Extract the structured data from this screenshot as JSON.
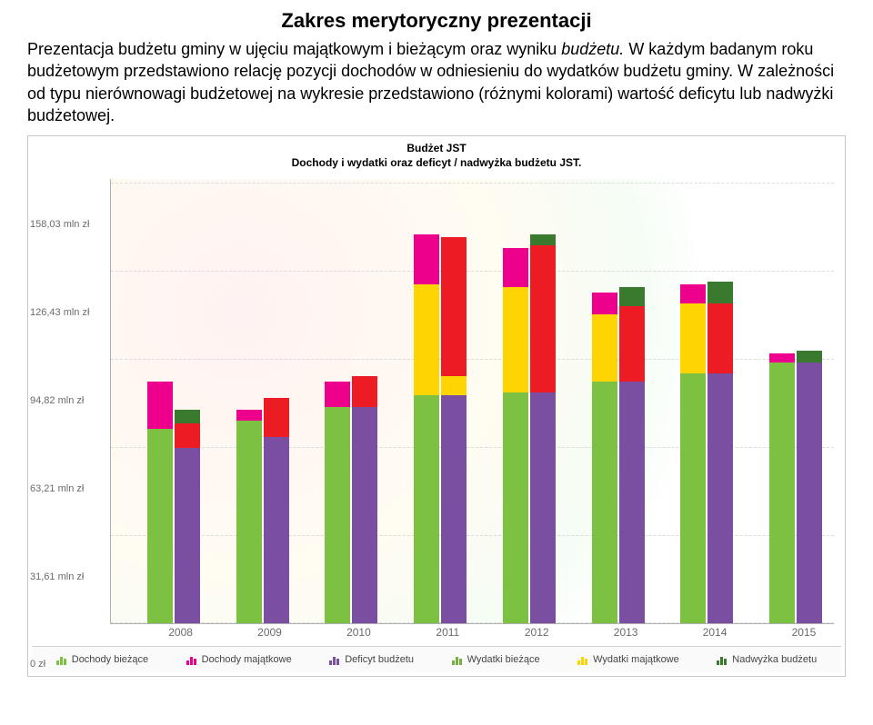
{
  "page": {
    "title": "Zakres merytoryczny prezentacji",
    "intro_before_italic": "Prezentacja budżetu gminy w ujęciu majątkowym i bieżącym oraz wyniku ",
    "intro_italic": "budżetu. ",
    "intro_after_italic": "W każdym badanym roku budżetowym przedstawiono relację pozycji dochodów w odniesieniu do wydatków budżetu gminy. W zależności od typu nierównowagi budżetowej na wykresie przedstawiono (różnymi kolorami) wartość deficytu lub nadwyżki budżetowej."
  },
  "chart": {
    "title_line1": "Budżet JST",
    "title_line2": "Dochody i wydatki oraz deficyt / nadwyżka budżetu JST.",
    "y_max": 160,
    "y_ticks": [
      {
        "v": 0,
        "label": "0 zł"
      },
      {
        "v": 31.61,
        "label": "31,61 mln zł"
      },
      {
        "v": 63.21,
        "label": "63,21 mln zł"
      },
      {
        "v": 94.82,
        "label": "94,82 mln zł"
      },
      {
        "v": 126.43,
        "label": "126,43 mln zł"
      },
      {
        "v": 158.03,
        "label": "158,03 mln zł"
      }
    ],
    "colors": {
      "dochody_biezace": "#7cc142",
      "dochody_majatkowe": "#ec008c",
      "deficyt_budzetu": "#7a4ea0",
      "wydatki_biezace": "#76b043",
      "wydatki_majatkowe": "#ffd400",
      "wydatki_majatkowe_alt": "#ed1c24",
      "nadwyzka_budzetu": "#3a7a2e",
      "bg": "#ffffff",
      "grid": "#dcdcdc",
      "axis": "#b0b0b0",
      "tick_text": "#6a6a6a"
    },
    "years": [
      "2008",
      "2009",
      "2010",
      "2011",
      "2012",
      "2013",
      "2014",
      "2015"
    ],
    "group_width_pct": 9.5,
    "group_positions_pct": [
      5,
      17.3,
      29.6,
      41.9,
      54.2,
      66.5,
      78.8,
      91.1
    ],
    "data": [
      {
        "year": "2008",
        "left": [
          {
            "c": "dochody_biezace",
            "v": 70
          },
          {
            "c": "dochody_majatkowe",
            "v": 17
          }
        ],
        "right": [
          {
            "c": "deficyt_budzetu",
            "v": 63
          },
          {
            "c": "wydatki_majatkowe_alt",
            "v": 9
          },
          {
            "c": "nadwyzka_budzetu",
            "v": 5
          }
        ]
      },
      {
        "year": "2009",
        "left": [
          {
            "c": "dochody_biezace",
            "v": 73
          },
          {
            "c": "dochody_majatkowe",
            "v": 4
          }
        ],
        "right": [
          {
            "c": "deficyt_budzetu",
            "v": 67
          },
          {
            "c": "wydatki_majatkowe_alt",
            "v": 14
          }
        ]
      },
      {
        "year": "2010",
        "left": [
          {
            "c": "dochody_biezace",
            "v": 78
          },
          {
            "c": "dochody_majatkowe",
            "v": 9
          }
        ],
        "right": [
          {
            "c": "deficyt_budzetu",
            "v": 78
          },
          {
            "c": "wydatki_majatkowe_alt",
            "v": 11
          }
        ]
      },
      {
        "year": "2011",
        "left": [
          {
            "c": "dochody_biezace",
            "v": 82
          },
          {
            "c": "wydatki_majatkowe",
            "v": 40
          },
          {
            "c": "dochody_majatkowe",
            "v": 18
          }
        ],
        "right": [
          {
            "c": "deficyt_budzetu",
            "v": 82
          },
          {
            "c": "wydatki_majatkowe",
            "v": 7
          },
          {
            "c": "wydatki_majatkowe_alt",
            "v": 50
          }
        ]
      },
      {
        "year": "2012",
        "left": [
          {
            "c": "dochody_biezace",
            "v": 83
          },
          {
            "c": "wydatki_majatkowe",
            "v": 38
          },
          {
            "c": "dochody_majatkowe",
            "v": 14
          }
        ],
        "right": [
          {
            "c": "deficyt_budzetu",
            "v": 83
          },
          {
            "c": "wydatki_majatkowe_alt",
            "v": 53
          },
          {
            "c": "nadwyzka_budzetu",
            "v": 4
          }
        ]
      },
      {
        "year": "2013",
        "left": [
          {
            "c": "dochody_biezace",
            "v": 87
          },
          {
            "c": "wydatki_majatkowe",
            "v": 24
          },
          {
            "c": "dochody_majatkowe",
            "v": 8
          }
        ],
        "right": [
          {
            "c": "deficyt_budzetu",
            "v": 87
          },
          {
            "c": "wydatki_majatkowe_alt",
            "v": 27
          },
          {
            "c": "nadwyzka_budzetu",
            "v": 7
          }
        ]
      },
      {
        "year": "2014",
        "left": [
          {
            "c": "dochody_biezace",
            "v": 90
          },
          {
            "c": "wydatki_majatkowe",
            "v": 25
          },
          {
            "c": "dochody_majatkowe",
            "v": 7
          }
        ],
        "right": [
          {
            "c": "deficyt_budzetu",
            "v": 90
          },
          {
            "c": "wydatki_majatkowe_alt",
            "v": 25
          },
          {
            "c": "nadwyzka_budzetu",
            "v": 8
          }
        ]
      },
      {
        "year": "2015",
        "left": [
          {
            "c": "dochody_biezace",
            "v": 94
          },
          {
            "c": "dochody_majatkowe",
            "v": 3
          }
        ],
        "right": [
          {
            "c": "deficyt_budzetu",
            "v": 94
          },
          {
            "c": "nadwyzka_budzetu",
            "v": 4
          }
        ]
      }
    ],
    "legend": [
      {
        "key": "dochody_biezace",
        "label": "Dochody bieżące"
      },
      {
        "key": "dochody_majatkowe",
        "label": "Dochody majątkowe"
      },
      {
        "key": "deficyt_budzetu",
        "label": "Deficyt budżetu"
      },
      {
        "key": "wydatki_biezace",
        "label": "Wydatki bieżące"
      },
      {
        "key": "wydatki_majatkowe",
        "label": "Wydatki majątkowe"
      },
      {
        "key": "nadwyzka_budzetu",
        "label": "Nadwyżka budżetu"
      }
    ]
  }
}
